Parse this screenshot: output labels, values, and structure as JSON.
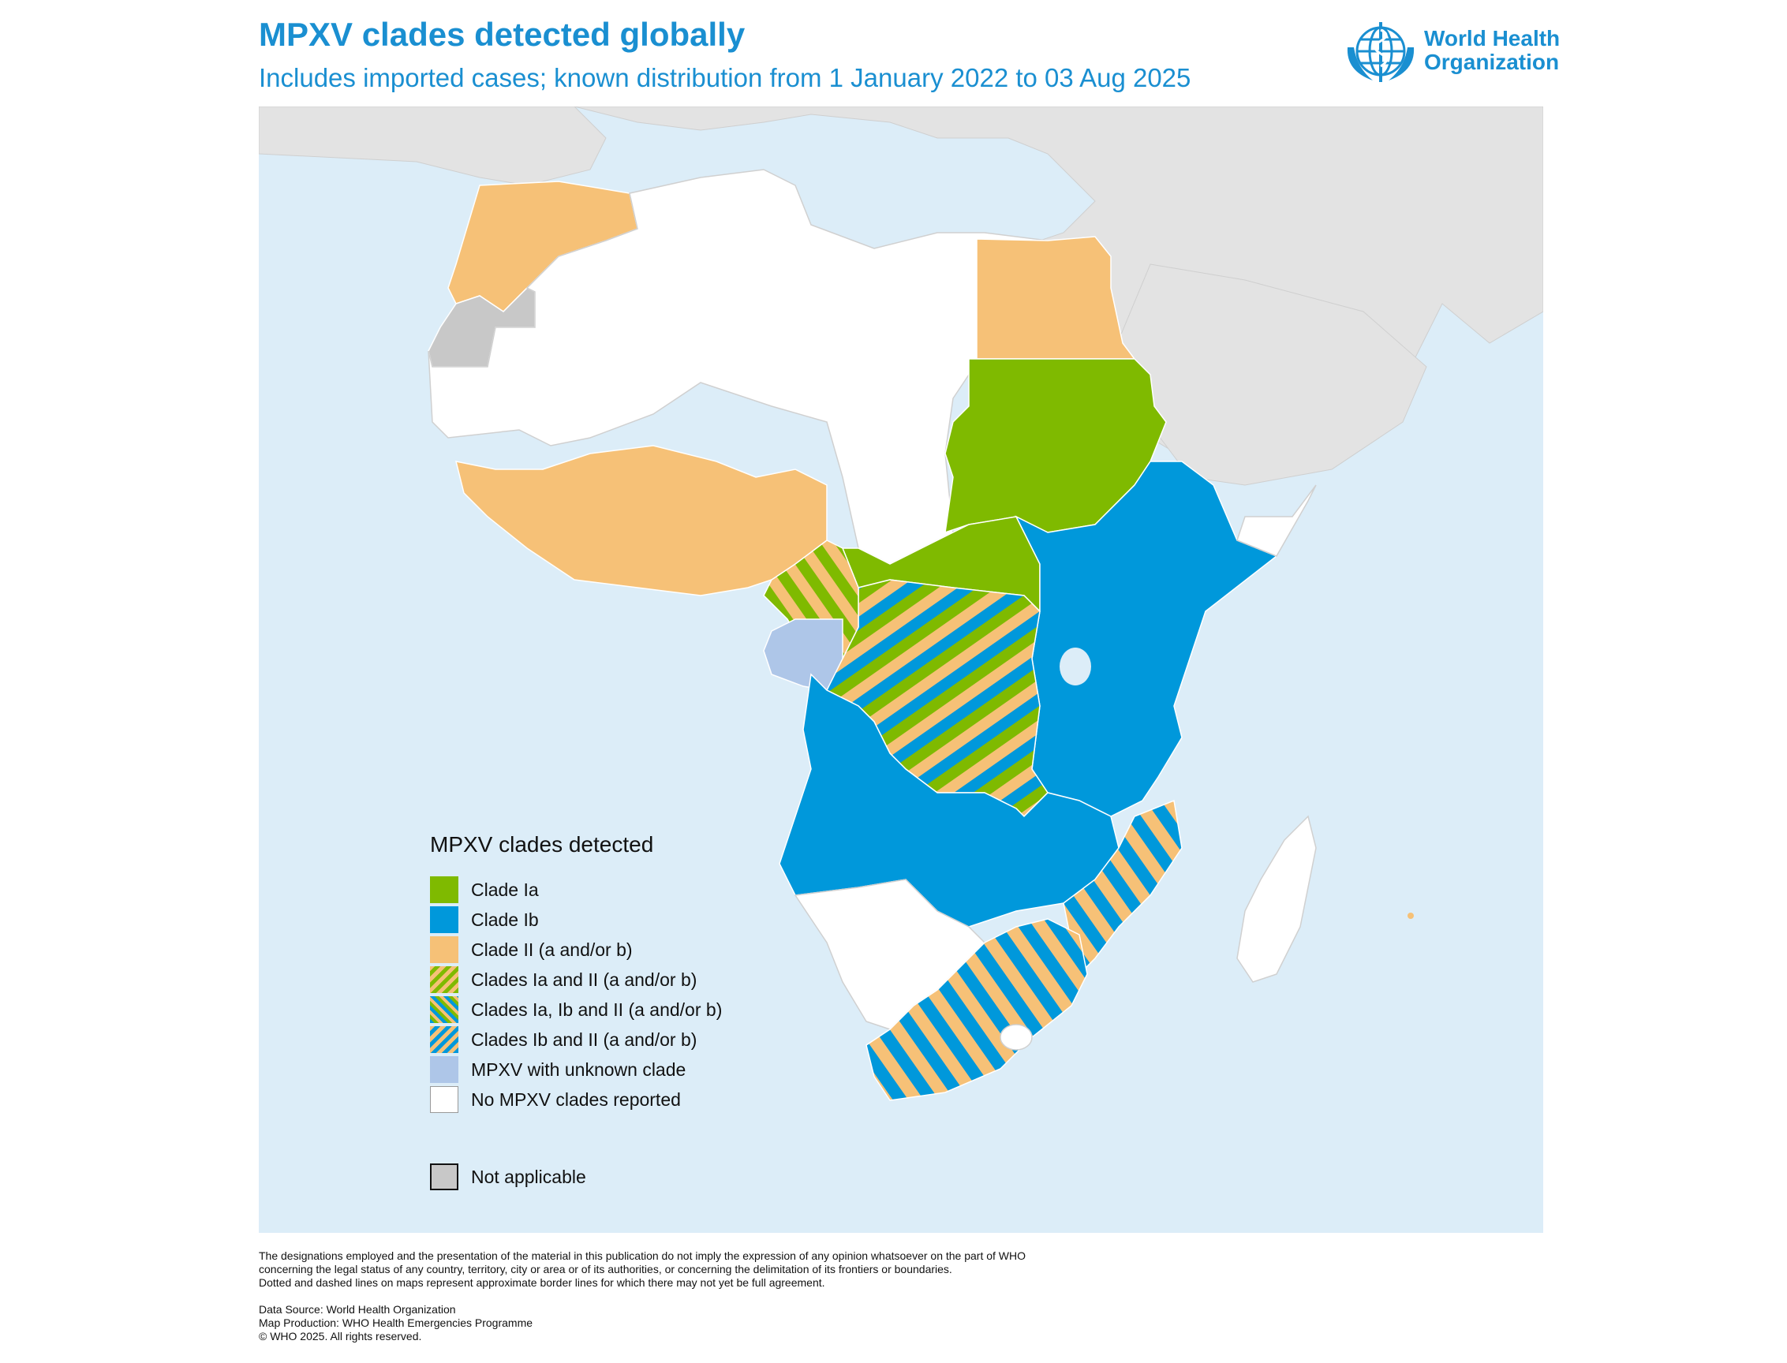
{
  "header": {
    "title": "MPXV clades detected globally",
    "subtitle": "Includes imported cases; known distribution from 1 January 2022 to 03 Aug 2025"
  },
  "logo": {
    "line1": "World Health",
    "line2": "Organization",
    "icon": "who-emblem-icon",
    "color": "#1a8fd1"
  },
  "colors": {
    "ocean": "#dcedf8",
    "other_land": "#e3e3e3",
    "clade_ia": "#7fba00",
    "clade_ib": "#0098db",
    "clade_ii": "#f6c177",
    "unknown": "#aec6e8",
    "none": "#ffffff",
    "not_applicable": "#c8c8c8"
  },
  "legend": {
    "title": "MPXV clades detected",
    "items": [
      {
        "label": "Clade Ia",
        "pattern": "clade_ia"
      },
      {
        "label": "Clade Ib",
        "pattern": "clade_ib"
      },
      {
        "label": "Clade II (a and/or b)",
        "pattern": "clade_ii"
      },
      {
        "label": "Clades Ia and II (a and/or b)",
        "pattern": "ia_ii"
      },
      {
        "label": "Clades Ia, Ib and II (a and/or b)",
        "pattern": "ia_ib_ii"
      },
      {
        "label": "Clades Ib and II (a and/or b)",
        "pattern": "ib_ii"
      },
      {
        "label": "MPXV with unknown clade",
        "pattern": "unknown"
      },
      {
        "label": "No MPXV clades reported",
        "pattern": "none"
      }
    ],
    "not_applicable": "Not applicable"
  },
  "footer": {
    "disclaimer": [
      "The designations employed and the presentation of the material in this publication do not imply the expression of any opinion whatsoever on the part of WHO",
      "concerning the legal status of any country, territory, city or area or of its authorities, or concerning the delimitation of its frontiers or boundaries.",
      "Dotted and dashed lines on maps represent approximate border lines for which there may not yet be full agreement."
    ],
    "source": "Data Source: World Health Organization",
    "production": "Map Production: WHO Health Emergencies Programme",
    "copyright": "© WHO 2025. All rights reserved."
  }
}
